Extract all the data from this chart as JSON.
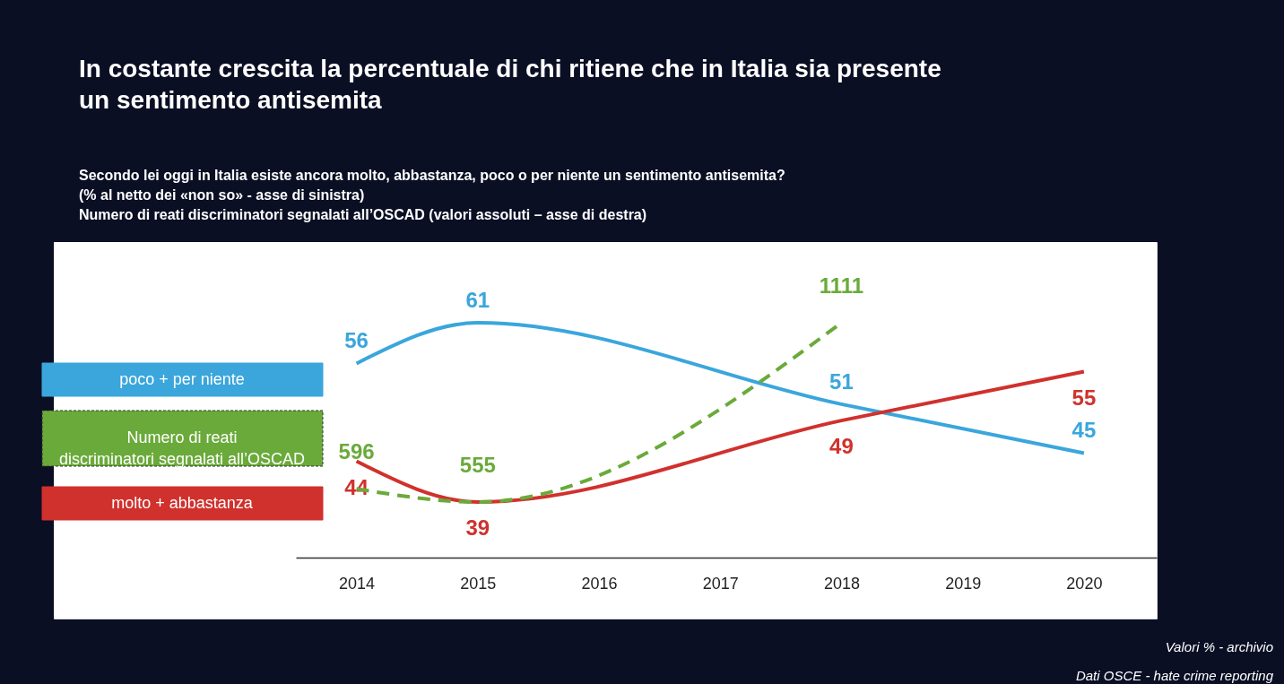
{
  "chart_data": {
    "type": "line",
    "title": "In costante crescita la percentuale di chi ritiene che in Italia sia presente\nun sentimento antisemita",
    "subtitle": "Secondo lei oggi in Italia esiste ancora molto, abbastanza, poco o per niente un sentimento antisemita?\n(% al netto dei «non so» - asse di sinistra)\nNumero di reati discriminatori segnalati all’OSCAD (valori assoluti – asse di destra)",
    "xticks": [
      2014,
      2015,
      2016,
      2017,
      2018,
      2019,
      2020
    ],
    "xlim": [
      2013.5,
      2020.6
    ],
    "series": [
      {
        "name": "poco + per niente",
        "color": "#3aa6dc",
        "x": [
          2014,
          2015,
          2018,
          2020
        ],
        "values": [
          56,
          61,
          51,
          45
        ],
        "line_style": "solid"
      },
      {
        "name": "Numero di reati discriminatori segnalati all’OSCAD",
        "color": "#6aaa3a",
        "x": [
          2014,
          2015,
          2018
        ],
        "values": [
          596,
          555,
          1111
        ],
        "axis": "y2",
        "line_style": "dashed"
      },
      {
        "name": "molto + abbastanza",
        "color": "#d0312d",
        "x": [
          2014,
          2015,
          2018,
          2020
        ],
        "values": [
          44,
          39,
          49,
          55
        ],
        "line_style": "solid"
      }
    ],
    "data_labels": true,
    "marker": "none",
    "grid": false,
    "legend": "left",
    "tick_labels": "x",
    "annotations": [
      "Valori % - archivio",
      "Dati OSCE  - hate crime reporting"
    ]
  }
}
